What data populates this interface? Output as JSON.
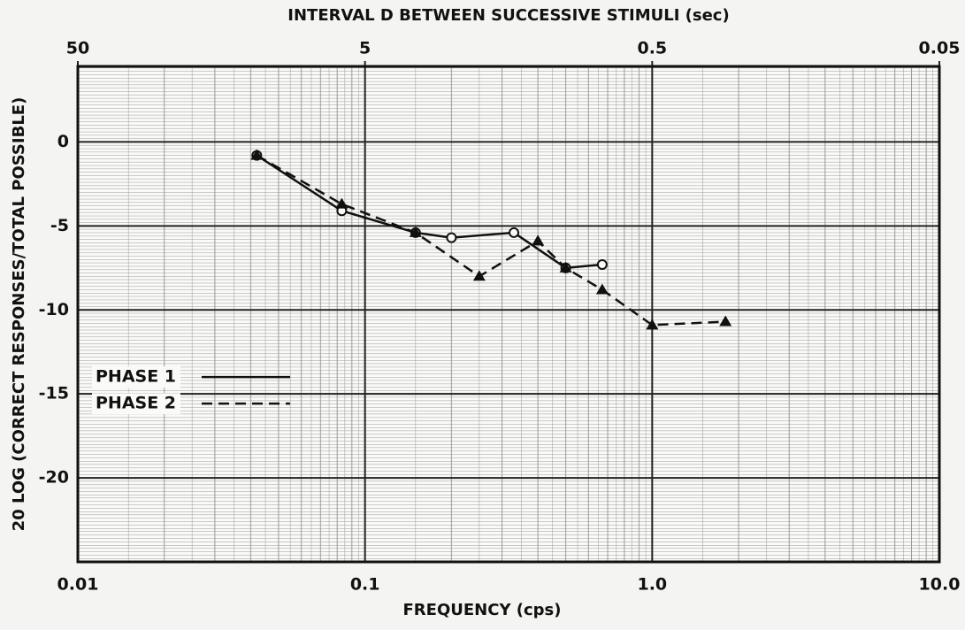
{
  "chart_data": {
    "type": "line",
    "title": "INTERVAL D BETWEEN SUCCESSIVE STIMULI (sec)",
    "xlabel": "FREQUENCY (cps)",
    "ylabel": "20 LOG (CORRECT RESPONSES/TOTAL POSSIBLE)",
    "xscale": "log",
    "xlim": [
      0.01,
      10
    ],
    "xticks": [
      0.01,
      0.1,
      {
        "value": 1,
        "label": "1.0"
      },
      {
        "value": 10,
        "label": "10.0"
      }
    ],
    "x2lim": [
      50,
      0.05
    ],
    "x2ticks": [
      50,
      5,
      0.5,
      0.05
    ],
    "ylim": [
      -25,
      4.5
    ],
    "yticks": [
      0,
      -5,
      -10,
      -15,
      -20
    ],
    "grid": true,
    "legend": "lower left",
    "series": [
      {
        "name": "PHASE 1",
        "color": "#111111",
        "linestyle": "solid",
        "marker": "o",
        "x": [
          0.042,
          0.083,
          0.15,
          0.2,
          0.33,
          0.5,
          0.67
        ],
        "values": [
          -0.8,
          -4.1,
          -5.4,
          -5.7,
          -5.4,
          -7.5,
          -7.3
        ]
      },
      {
        "name": "PHASE 2",
        "color": "#111111",
        "linestyle": "dashed",
        "marker": "^",
        "x": [
          0.042,
          0.083,
          0.15,
          0.25,
          0.4,
          0.5,
          0.67,
          1.0,
          1.8
        ],
        "values": [
          -0.8,
          -3.7,
          -5.4,
          -8.0,
          -5.9,
          -7.5,
          -8.8,
          -10.9,
          -10.7
        ]
      }
    ]
  }
}
